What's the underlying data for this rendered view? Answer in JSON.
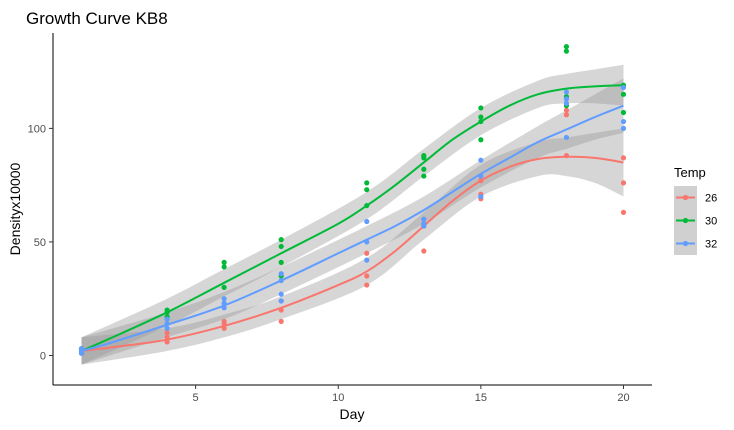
{
  "chart_data": {
    "type": "scatter",
    "title": "Growth Curve KB8",
    "xlabel": "Day",
    "ylabel": "Densityx10000",
    "xlim": [
      0,
      21
    ],
    "ylim": [
      -13,
      142
    ],
    "x_ticks": [
      5,
      10,
      15,
      20
    ],
    "y_ticks": [
      0,
      50,
      100
    ],
    "x_tick_labels": [
      "5",
      "10",
      "15",
      "20"
    ],
    "y_tick_labels": [
      "0",
      "50",
      "100"
    ],
    "grid": false,
    "smoothing": "loess with grey confidence band",
    "legend": {
      "title": "Temp",
      "position": "right"
    },
    "series": [
      {
        "name": "26",
        "color": "#F8766D",
        "points": [
          [
            1,
            1
          ],
          [
            1,
            2
          ],
          [
            1,
            3
          ],
          [
            4,
            6
          ],
          [
            4,
            8
          ],
          [
            4,
            10
          ],
          [
            6,
            12
          ],
          [
            6,
            14
          ],
          [
            6,
            15
          ],
          [
            8,
            15
          ],
          [
            8,
            20
          ],
          [
            8,
            24
          ],
          [
            11,
            31
          ],
          [
            11,
            35
          ],
          [
            11,
            45
          ],
          [
            13,
            46
          ],
          [
            13,
            57
          ],
          [
            13,
            60
          ],
          [
            15,
            69
          ],
          [
            15,
            71
          ],
          [
            15,
            77
          ],
          [
            18,
            88
          ],
          [
            18,
            106
          ],
          [
            18,
            108
          ],
          [
            20,
            63
          ],
          [
            20,
            76
          ],
          [
            20,
            87
          ]
        ],
        "fit": [
          [
            1,
            2
          ],
          [
            2,
            3.5
          ],
          [
            4,
            7
          ],
          [
            6,
            13
          ],
          [
            8,
            21
          ],
          [
            10,
            31
          ],
          [
            11,
            37
          ],
          [
            12,
            46
          ],
          [
            13,
            57
          ],
          [
            14,
            68
          ],
          [
            15,
            77
          ],
          [
            16,
            83
          ],
          [
            17,
            86.5
          ],
          [
            18,
            87.5
          ],
          [
            19,
            87
          ],
          [
            20,
            85
          ]
        ],
        "band": [
          [
            1,
            -4,
            8
          ],
          [
            4,
            2,
            12
          ],
          [
            6,
            8,
            18
          ],
          [
            8,
            16,
            26
          ],
          [
            11,
            31,
            43
          ],
          [
            13,
            51,
            63
          ],
          [
            15,
            70,
            84
          ],
          [
            17,
            79,
            94
          ],
          [
            18,
            79,
            96
          ],
          [
            19,
            76,
            98
          ],
          [
            20,
            70,
            100
          ]
        ]
      },
      {
        "name": "30",
        "color": "#00BA38",
        "points": [
          [
            1,
            1
          ],
          [
            1,
            2
          ],
          [
            1,
            3
          ],
          [
            4,
            17
          ],
          [
            4,
            19
          ],
          [
            4,
            20
          ],
          [
            6,
            30
          ],
          [
            6,
            39
          ],
          [
            6,
            41
          ],
          [
            8,
            35
          ],
          [
            8,
            41
          ],
          [
            8,
            48
          ],
          [
            8,
            51
          ],
          [
            11,
            66
          ],
          [
            11,
            73
          ],
          [
            11,
            76
          ],
          [
            13,
            79
          ],
          [
            13,
            82
          ],
          [
            13,
            87
          ],
          [
            13,
            88
          ],
          [
            15,
            95
          ],
          [
            15,
            103
          ],
          [
            15,
            105
          ],
          [
            15,
            109
          ],
          [
            18,
            110
          ],
          [
            18,
            114
          ],
          [
            18,
            134
          ],
          [
            18,
            136
          ],
          [
            20,
            107
          ],
          [
            20,
            115
          ],
          [
            20,
            119
          ]
        ],
        "fit": [
          [
            1,
            2
          ],
          [
            2,
            7.5
          ],
          [
            4,
            19
          ],
          [
            6,
            32
          ],
          [
            8,
            45
          ],
          [
            10,
            58
          ],
          [
            11,
            66
          ],
          [
            12,
            75
          ],
          [
            13,
            85
          ],
          [
            14,
            95
          ],
          [
            15,
            103
          ],
          [
            16,
            110
          ],
          [
            17,
            115
          ],
          [
            18,
            117.5
          ],
          [
            19,
            118.5
          ],
          [
            20,
            119
          ]
        ],
        "band": [
          [
            1,
            -4,
            8
          ],
          [
            4,
            13,
            25
          ],
          [
            6,
            26,
            38
          ],
          [
            8,
            39,
            51
          ],
          [
            11,
            60,
            72
          ],
          [
            13,
            79,
            91
          ],
          [
            15,
            97,
            109
          ],
          [
            17,
            109,
            121
          ],
          [
            18,
            111,
            124
          ],
          [
            19,
            111,
            126
          ],
          [
            20,
            110,
            128
          ]
        ]
      },
      {
        "name": "32",
        "color": "#619CFF",
        "points": [
          [
            1,
            1
          ],
          [
            1,
            2
          ],
          [
            1,
            3
          ],
          [
            4,
            12
          ],
          [
            4,
            14
          ],
          [
            4,
            16
          ],
          [
            6,
            21
          ],
          [
            6,
            23
          ],
          [
            6,
            25
          ],
          [
            8,
            24
          ],
          [
            8,
            27
          ],
          [
            8,
            33
          ],
          [
            8,
            36
          ],
          [
            11,
            42
          ],
          [
            11,
            50
          ],
          [
            11,
            59
          ],
          [
            13,
            57
          ],
          [
            13,
            58
          ],
          [
            13,
            60
          ],
          [
            15,
            70
          ],
          [
            15,
            79
          ],
          [
            15,
            86
          ],
          [
            18,
            96
          ],
          [
            18,
            111
          ],
          [
            18,
            113
          ],
          [
            18,
            116
          ],
          [
            20,
            100
          ],
          [
            20,
            103
          ],
          [
            20,
            118
          ]
        ],
        "fit": [
          [
            1,
            2
          ],
          [
            2,
            5.5
          ],
          [
            4,
            13.5
          ],
          [
            6,
            22
          ],
          [
            8,
            33
          ],
          [
            10,
            45
          ],
          [
            11,
            51
          ],
          [
            12,
            57
          ],
          [
            13,
            64
          ],
          [
            14,
            72
          ],
          [
            15,
            80
          ],
          [
            16,
            87
          ],
          [
            17,
            94
          ],
          [
            18,
            99.5
          ],
          [
            19,
            105
          ],
          [
            20,
            110
          ]
        ],
        "band": [
          [
            1,
            -4,
            8
          ],
          [
            4,
            8,
            19
          ],
          [
            6,
            16,
            28
          ],
          [
            8,
            27,
            39
          ],
          [
            11,
            45,
            57
          ],
          [
            13,
            58,
            70
          ],
          [
            15,
            74,
            86
          ],
          [
            17,
            87,
            101
          ],
          [
            18,
            91,
            108
          ],
          [
            19,
            95,
            115
          ],
          [
            20,
            98,
            122
          ]
        ]
      }
    ]
  }
}
